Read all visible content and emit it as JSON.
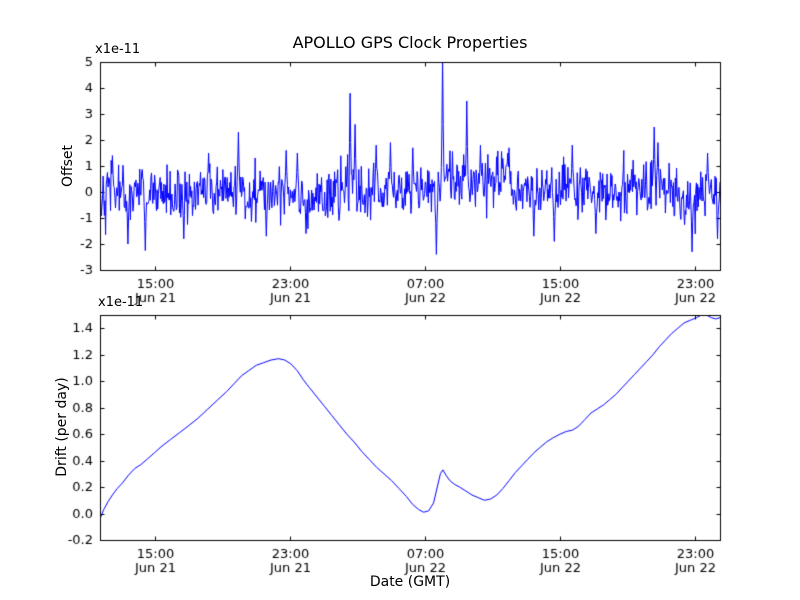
{
  "figure": {
    "background_color": "#ffffff",
    "axes_color": "#000000",
    "tick_label_color": "#000000"
  },
  "chart_data": [
    {
      "type": "line",
      "name": "gps-clock-offset",
      "title": "APOLLO GPS Clock Properties",
      "ylabel": "Offset",
      "scale_label": "x1e-11",
      "line_color": "#0000ff",
      "grid": false,
      "legend": null,
      "xlim": [
        0,
        1
      ],
      "ylim": [
        -3,
        5
      ],
      "yticks": [
        -3,
        -2,
        -1,
        0,
        1,
        2,
        3,
        4,
        5
      ],
      "ytick_labels": [
        "-3",
        "-2",
        "-1",
        "0",
        "1",
        "2",
        "3",
        "4",
        "5"
      ],
      "xtick_positions": [
        0.088,
        0.306,
        0.524,
        0.742,
        0.96
      ],
      "xtick_labels": [
        [
          "15:00",
          "Jun 21"
        ],
        [
          "23:00",
          "Jun 21"
        ],
        [
          "07:00",
          "Jun 22"
        ],
        [
          "15:00",
          "Jun 22"
        ],
        [
          "23:00",
          "Jun 22"
        ]
      ],
      "noise": {
        "mean": 0.0,
        "std": 0.5,
        "n_points": 1000,
        "seed": 42
      },
      "mean_shifts": [
        {
          "x0": 0.1,
          "x1": 0.16,
          "dy": -0.15
        },
        {
          "x0": 0.33,
          "x1": 0.38,
          "dy": -0.2
        },
        {
          "x0": 0.555,
          "x1": 0.66,
          "dy": 0.45
        },
        {
          "x0": 0.86,
          "x1": 0.91,
          "dy": 0.2
        },
        {
          "x0": 0.93,
          "x1": 0.97,
          "dy": -0.25
        }
      ],
      "spikes": [
        {
          "x": 0.02,
          "y": 1.4
        },
        {
          "x": 0.045,
          "y": -2.0
        },
        {
          "x": 0.073,
          "y": -2.25
        },
        {
          "x": 0.135,
          "y": -1.8
        },
        {
          "x": 0.175,
          "y": 1.5
        },
        {
          "x": 0.223,
          "y": 2.3
        },
        {
          "x": 0.268,
          "y": -1.7
        },
        {
          "x": 0.3,
          "y": 1.6
        },
        {
          "x": 0.318,
          "y": 1.5
        },
        {
          "x": 0.332,
          "y": -1.6
        },
        {
          "x": 0.403,
          "y": 3.8
        },
        {
          "x": 0.411,
          "y": 2.6
        },
        {
          "x": 0.445,
          "y": 1.8
        },
        {
          "x": 0.468,
          "y": 1.9
        },
        {
          "x": 0.505,
          "y": 1.7
        },
        {
          "x": 0.543,
          "y": -2.4
        },
        {
          "x": 0.553,
          "y": 5.2
        },
        {
          "x": 0.592,
          "y": 3.5
        },
        {
          "x": 0.614,
          "y": 1.8
        },
        {
          "x": 0.66,
          "y": 1.7
        },
        {
          "x": 0.7,
          "y": -1.7
        },
        {
          "x": 0.733,
          "y": -1.9
        },
        {
          "x": 0.762,
          "y": 1.8
        },
        {
          "x": 0.8,
          "y": -1.6
        },
        {
          "x": 0.845,
          "y": 1.6
        },
        {
          "x": 0.894,
          "y": 2.5
        },
        {
          "x": 0.9,
          "y": 1.9
        },
        {
          "x": 0.955,
          "y": -2.3
        },
        {
          "x": 0.98,
          "y": 1.5
        },
        {
          "x": 0.996,
          "y": -1.8
        }
      ]
    },
    {
      "type": "line",
      "name": "gps-clock-drift",
      "ylabel": "Drift (per day)",
      "xlabel": "Date (GMT)",
      "scale_label": "x1e-11",
      "line_color": "#0000ff",
      "grid": false,
      "legend": null,
      "xlim": [
        0,
        1
      ],
      "ylim": [
        -0.2,
        1.5
      ],
      "yticks": [
        -0.2,
        0.0,
        0.2,
        0.4,
        0.6,
        0.8,
        1.0,
        1.2,
        1.4
      ],
      "ytick_labels": [
        "-0.2",
        "0.0",
        "0.2",
        "0.4",
        "0.6",
        "0.8",
        "1.0",
        "1.2",
        "1.4"
      ],
      "xtick_positions": [
        0.088,
        0.306,
        0.524,
        0.742,
        0.96
      ],
      "xtick_labels": [
        [
          "15:00",
          "Jun 21"
        ],
        [
          "23:00",
          "Jun 21"
        ],
        [
          "07:00",
          "Jun 22"
        ],
        [
          "15:00",
          "Jun 22"
        ],
        [
          "23:00",
          "Jun 22"
        ]
      ],
      "points": [
        [
          0.0,
          -0.04
        ],
        [
          0.006,
          0.03
        ],
        [
          0.013,
          0.09
        ],
        [
          0.02,
          0.14
        ],
        [
          0.028,
          0.19
        ],
        [
          0.036,
          0.23
        ],
        [
          0.046,
          0.29
        ],
        [
          0.056,
          0.34
        ],
        [
          0.066,
          0.37
        ],
        [
          0.076,
          0.41
        ],
        [
          0.088,
          0.46
        ],
        [
          0.1,
          0.51
        ],
        [
          0.114,
          0.56
        ],
        [
          0.128,
          0.61
        ],
        [
          0.142,
          0.66
        ],
        [
          0.158,
          0.72
        ],
        [
          0.174,
          0.79
        ],
        [
          0.19,
          0.86
        ],
        [
          0.204,
          0.92
        ],
        [
          0.216,
          0.98
        ],
        [
          0.228,
          1.04
        ],
        [
          0.24,
          1.08
        ],
        [
          0.252,
          1.12
        ],
        [
          0.264,
          1.14
        ],
        [
          0.276,
          1.16
        ],
        [
          0.288,
          1.17
        ],
        [
          0.298,
          1.16
        ],
        [
          0.308,
          1.13
        ],
        [
          0.318,
          1.08
        ],
        [
          0.328,
          1.01
        ],
        [
          0.338,
          0.95
        ],
        [
          0.35,
          0.88
        ],
        [
          0.362,
          0.81
        ],
        [
          0.374,
          0.74
        ],
        [
          0.386,
          0.67
        ],
        [
          0.398,
          0.6
        ],
        [
          0.41,
          0.54
        ],
        [
          0.422,
          0.47
        ],
        [
          0.434,
          0.41
        ],
        [
          0.446,
          0.35
        ],
        [
          0.458,
          0.3
        ],
        [
          0.47,
          0.25
        ],
        [
          0.482,
          0.19
        ],
        [
          0.494,
          0.13
        ],
        [
          0.504,
          0.07
        ],
        [
          0.514,
          0.03
        ],
        [
          0.522,
          0.01
        ],
        [
          0.53,
          0.02
        ],
        [
          0.538,
          0.08
        ],
        [
          0.544,
          0.2
        ],
        [
          0.549,
          0.3
        ],
        [
          0.553,
          0.33
        ],
        [
          0.558,
          0.29
        ],
        [
          0.564,
          0.25
        ],
        [
          0.572,
          0.22
        ],
        [
          0.58,
          0.2
        ],
        [
          0.59,
          0.17
        ],
        [
          0.6,
          0.14
        ],
        [
          0.61,
          0.12
        ],
        [
          0.62,
          0.1
        ],
        [
          0.63,
          0.11
        ],
        [
          0.64,
          0.14
        ],
        [
          0.65,
          0.19
        ],
        [
          0.66,
          0.25
        ],
        [
          0.67,
          0.31
        ],
        [
          0.68,
          0.36
        ],
        [
          0.69,
          0.41
        ],
        [
          0.7,
          0.46
        ],
        [
          0.71,
          0.5
        ],
        [
          0.72,
          0.54
        ],
        [
          0.73,
          0.57
        ],
        [
          0.742,
          0.6
        ],
        [
          0.752,
          0.62
        ],
        [
          0.762,
          0.63
        ],
        [
          0.772,
          0.66
        ],
        [
          0.782,
          0.71
        ],
        [
          0.792,
          0.76
        ],
        [
          0.802,
          0.79
        ],
        [
          0.812,
          0.82
        ],
        [
          0.822,
          0.86
        ],
        [
          0.832,
          0.9
        ],
        [
          0.842,
          0.95
        ],
        [
          0.852,
          1.0
        ],
        [
          0.862,
          1.05
        ],
        [
          0.872,
          1.1
        ],
        [
          0.882,
          1.15
        ],
        [
          0.892,
          1.2
        ],
        [
          0.902,
          1.26
        ],
        [
          0.912,
          1.31
        ],
        [
          0.922,
          1.36
        ],
        [
          0.932,
          1.4
        ],
        [
          0.942,
          1.44
        ],
        [
          0.952,
          1.46
        ],
        [
          0.962,
          1.48
        ],
        [
          0.97,
          1.5
        ],
        [
          0.978,
          1.5
        ],
        [
          0.986,
          1.48
        ],
        [
          0.993,
          1.47
        ],
        [
          1.0,
          1.48
        ]
      ]
    }
  ]
}
